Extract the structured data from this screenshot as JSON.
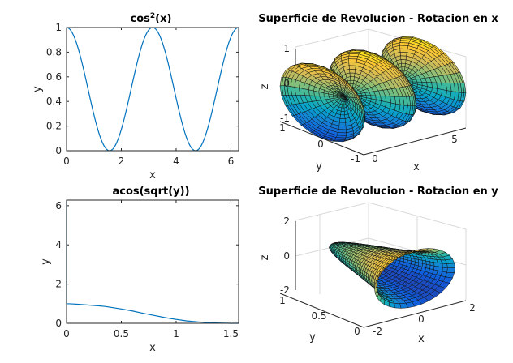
{
  "colors": {
    "line": "#0072bd",
    "axis": "#262626",
    "mesh": "#111111",
    "colormap": [
      "#352a87",
      "#0f5cdd",
      "#1481d6",
      "#06a4ca",
      "#2eb7a4",
      "#87bf77",
      "#d1bb59",
      "#fec832",
      "#f9fb0e"
    ]
  },
  "chart_data": [
    {
      "id": "cos2",
      "type": "line",
      "title_base": "cos",
      "title_sup": "2",
      "title_tail": "(x)",
      "xlabel": "x",
      "ylabel": "y",
      "xlim": [
        0,
        6.2832
      ],
      "ylim": [
        0,
        1
      ],
      "xticks": [
        0,
        2,
        4,
        6
      ],
      "yticks": [
        0,
        0.2,
        0.4,
        0.6,
        0.8,
        1
      ],
      "xtick_labels": [
        "0",
        "2",
        "4",
        "6"
      ],
      "ytick_labels": [
        "0",
        "0.2",
        "0.4",
        "0.6",
        "0.8",
        "1"
      ],
      "function": "cos(x)^2",
      "series": [
        {
          "x_range": [
            0,
            6.2832
          ]
        }
      ]
    },
    {
      "id": "surf_x",
      "type": "surface",
      "title": "Superficie de Revolucion - Rotacion en x",
      "xlabel": "x",
      "ylabel": "y",
      "zlabel": "z",
      "xlim": [
        0,
        6.2832
      ],
      "ylim": [
        -1,
        1
      ],
      "zlim": [
        -1,
        1
      ],
      "xticks": [
        0,
        5
      ],
      "yticks": [
        -1,
        0,
        1
      ],
      "zticks": [
        -1,
        0,
        1
      ],
      "xtick_labels": [
        "0",
        "5"
      ],
      "ytick_labels": [
        "-1",
        "0",
        "1"
      ],
      "ztick_labels": [
        "-1",
        "0",
        "1"
      ],
      "function": "r = cos(x)^2 rotated about x-axis"
    },
    {
      "id": "acos",
      "type": "line",
      "title": "acos(sqrt(y))",
      "xlabel": "x",
      "ylabel": "y",
      "xlim": [
        0,
        1.5708
      ],
      "ylim": [
        0,
        6.2832
      ],
      "xticks": [
        0,
        0.5,
        1,
        1.5
      ],
      "yticks": [
        0,
        2,
        4,
        6
      ],
      "xtick_labels": [
        "0",
        "0.5",
        "1",
        "1.5"
      ],
      "ytick_labels": [
        "0",
        "2",
        "4",
        "6"
      ],
      "series": [
        {
          "x": [
            0,
            0,
            0.05,
            0.1,
            0.15,
            0.2,
            0.25,
            0.3,
            0.35,
            0.4,
            0.5,
            0.6,
            0.7,
            0.8,
            0.9,
            1.0,
            1.1,
            1.2,
            1.3,
            1.4,
            1.5,
            1.5708
          ],
          "y": [
            6.2832,
            1.0,
            0.99,
            0.97,
            0.95,
            0.93,
            0.91,
            0.89,
            0.86,
            0.82,
            0.73,
            0.63,
            0.51,
            0.4,
            0.29,
            0.2,
            0.12,
            0.07,
            0.03,
            0.01,
            0.0,
            0.0
          ]
        }
      ]
    },
    {
      "id": "surf_y",
      "type": "surface",
      "title": "Superficie de Revolucion - Rotacion en y",
      "xlabel": "x",
      "ylabel": "y",
      "zlabel": "z",
      "xlim": [
        -2,
        2
      ],
      "ylim": [
        0,
        1
      ],
      "zlim": [
        -2,
        2
      ],
      "xticks": [
        -2,
        0,
        2
      ],
      "yticks": [
        0,
        0.5,
        1
      ],
      "zticks": [
        -2,
        0,
        2
      ],
      "xtick_labels": [
        "-2",
        "0",
        "2"
      ],
      "ytick_labels": [
        "0",
        "0.5",
        "1"
      ],
      "ztick_labels": [
        "-2",
        "0",
        "2"
      ],
      "function": "rotation of acos(sqrt(y)) about y-axis"
    }
  ]
}
